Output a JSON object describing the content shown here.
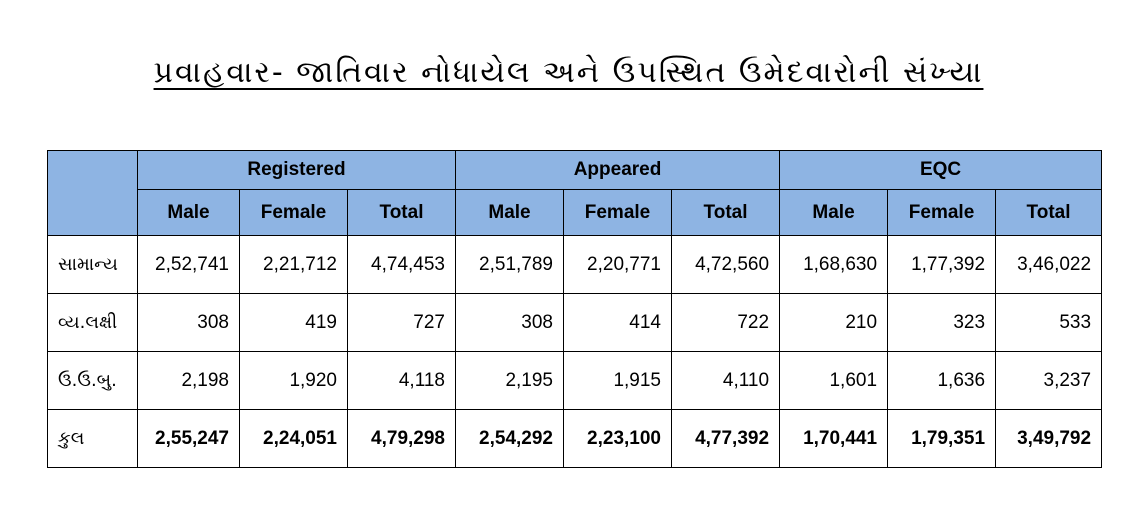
{
  "title": "પ્રવાહવાર- જાતિવાર નોધાયેલ અને ઉપસ્થિત ઉમેદવારોની સંખ્યા",
  "header": {
    "groups": [
      "Registered",
      "Appeared",
      "EQC"
    ],
    "sub": [
      "Male",
      "Female",
      "Total",
      "Male",
      "Female",
      "Total",
      "Male",
      "Female",
      "Total"
    ]
  },
  "rows": [
    {
      "label": "સામાન્ય",
      "values": [
        "2,52,741",
        "2,21,712",
        "4,74,453",
        "2,51,789",
        "2,20,771",
        "4,72,560",
        "1,68,630",
        "1,77,392",
        "3,46,022"
      ]
    },
    {
      "label": "વ્ય.લક્ષી",
      "values": [
        "308",
        "419",
        "727",
        "308",
        "414",
        "722",
        "210",
        "323",
        "533"
      ]
    },
    {
      "label": "ઉ.ઉ.બુ.",
      "values": [
        "2,198",
        "1,920",
        "4,118",
        "2,195",
        "1,915",
        "4,110",
        "1,601",
        "1,636",
        "3,237"
      ]
    },
    {
      "label": "કુલ",
      "values": [
        "2,55,247",
        "2,24,051",
        "4,79,298",
        "2,54,292",
        "2,23,100",
        "4,77,392",
        "1,70,441",
        "1,79,351",
        "3,49,792"
      ]
    }
  ],
  "colors": {
    "header_bg": "#8eb4e3",
    "border": "#000000"
  }
}
